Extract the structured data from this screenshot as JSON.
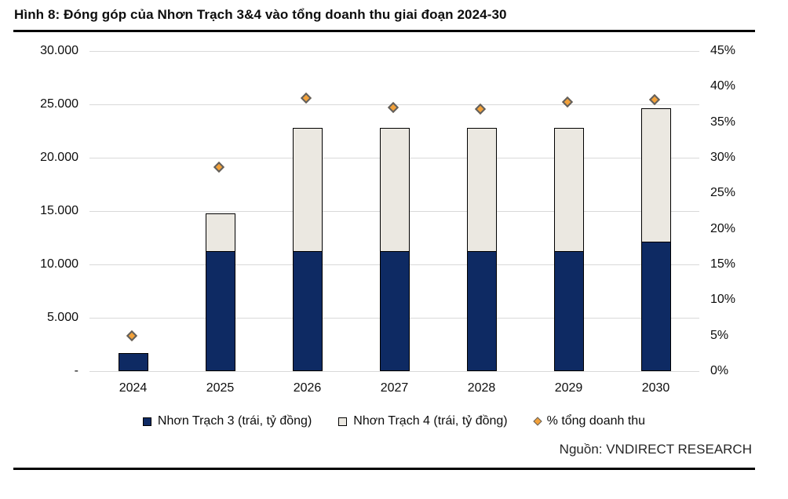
{
  "title": "Hình 8: Đóng góp của Nhơn Trạch 3&4 vào tổng doanh thu giai đoạn 2024-30",
  "source": "Nguồn: VNDIRECT RESEARCH",
  "colors": {
    "nhon_trach_3": "#0e2a63",
    "nhon_trach_4": "#ebe8e1",
    "pct_marker": "#f2a13a",
    "gridline": "#d9d9d9",
    "bar_border": "#000000",
    "marker_border": "#5f5f5f"
  },
  "legend": {
    "items": [
      {
        "label": "Nhơn Trạch 3 (trái, tỷ đồng)",
        "marker": "filled-square",
        "color": "#0e2a63"
      },
      {
        "label": "Nhơn Trạch 4 (trái, tỷ đồng)",
        "marker": "outlined-square",
        "color": "#ebe8e1"
      },
      {
        "label": "% tổng doanh thu",
        "marker": "diamond",
        "color": "#f2a13a"
      }
    ]
  },
  "chart_data": {
    "type": "bar",
    "subtype": "stacked-bars-with-scatter-overlay",
    "title": "Hình 8: Đóng góp của Nhơn Trạch 3&4 vào tổng doanh thu giai đoạn 2024-30",
    "categories": [
      "2024",
      "2025",
      "2026",
      "2027",
      "2028",
      "2029",
      "2030"
    ],
    "series": [
      {
        "name": "Nhơn Trạch 3 (trái, tỷ đồng)",
        "type": "bar",
        "axis": "left",
        "color": "#0e2a63",
        "values": [
          1700,
          11300,
          11300,
          11300,
          11300,
          11300,
          12200
        ]
      },
      {
        "name": "Nhơn Trạch 4 (trái, tỷ đồng)",
        "type": "bar",
        "axis": "left",
        "color": "#ebe8e1",
        "values": [
          0,
          3500,
          11500,
          11500,
          11500,
          11500,
          12400
        ]
      },
      {
        "name": "% tổng doanh thu",
        "type": "scatter",
        "axis": "right",
        "color": "#f2a13a",
        "values": [
          4.7,
          28.5,
          38.2,
          36.8,
          36.6,
          37.6,
          37.9
        ]
      }
    ],
    "left_axis": {
      "min": 0,
      "max": 30000,
      "step": 5000,
      "tick_labels": [
        "-",
        "5.000",
        "10.000",
        "15.000",
        "20.000",
        "25.000",
        "30.000"
      ]
    },
    "right_axis": {
      "min": 0,
      "max": 45,
      "step": 5,
      "tick_labels": [
        "0%",
        "5%",
        "10%",
        "15%",
        "20%",
        "25%",
        "30%",
        "35%",
        "40%",
        "45%"
      ]
    },
    "grid": true,
    "legend_position": "bottom"
  }
}
